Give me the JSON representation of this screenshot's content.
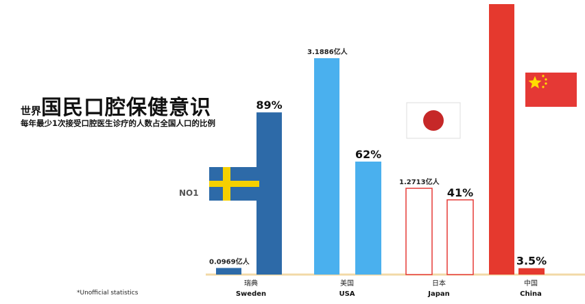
{
  "heading": {
    "prefix": "世界",
    "main": "国民口腔保健意识",
    "subtitle": "每年最少1次接受口腔医生诊疗的人数占全国人口的比例"
  },
  "badge": "NO1",
  "stray_mark": ".",
  "footnote": "*Unofficial statistics",
  "colors": {
    "sweden": "#2d6aa8",
    "usa": "#4ab0ee",
    "japan_outline": "#e53935",
    "china": "#e5392e",
    "baseline": "#f2d9a6"
  },
  "chart_data": {
    "type": "bar",
    "unit_population": "亿人",
    "categories": [
      {
        "zh": "瑞典",
        "en": "Sweden",
        "flag": "sweden-flag-icon"
      },
      {
        "zh": "美国",
        "en": "USA",
        "flag": "none"
      },
      {
        "zh": "日本",
        "en": "Japan",
        "flag": "japan-flag-icon"
      },
      {
        "zh": "中国",
        "en": "China",
        "flag": "china-flag-icon"
      }
    ],
    "series": [
      {
        "values": [
          0.0969,
          3.1886,
          1.2713,
          13.9
        ],
        "labels": [
          "0.0969亿人",
          "3.1886亿人",
          "1.2713亿人",
          ""
        ]
      },
      {
        "values": [
          0.89,
          0.62,
          0.41,
          0.035
        ],
        "labels": [
          "89%",
          "62%",
          "41%",
          "3.5%"
        ]
      }
    ]
  }
}
